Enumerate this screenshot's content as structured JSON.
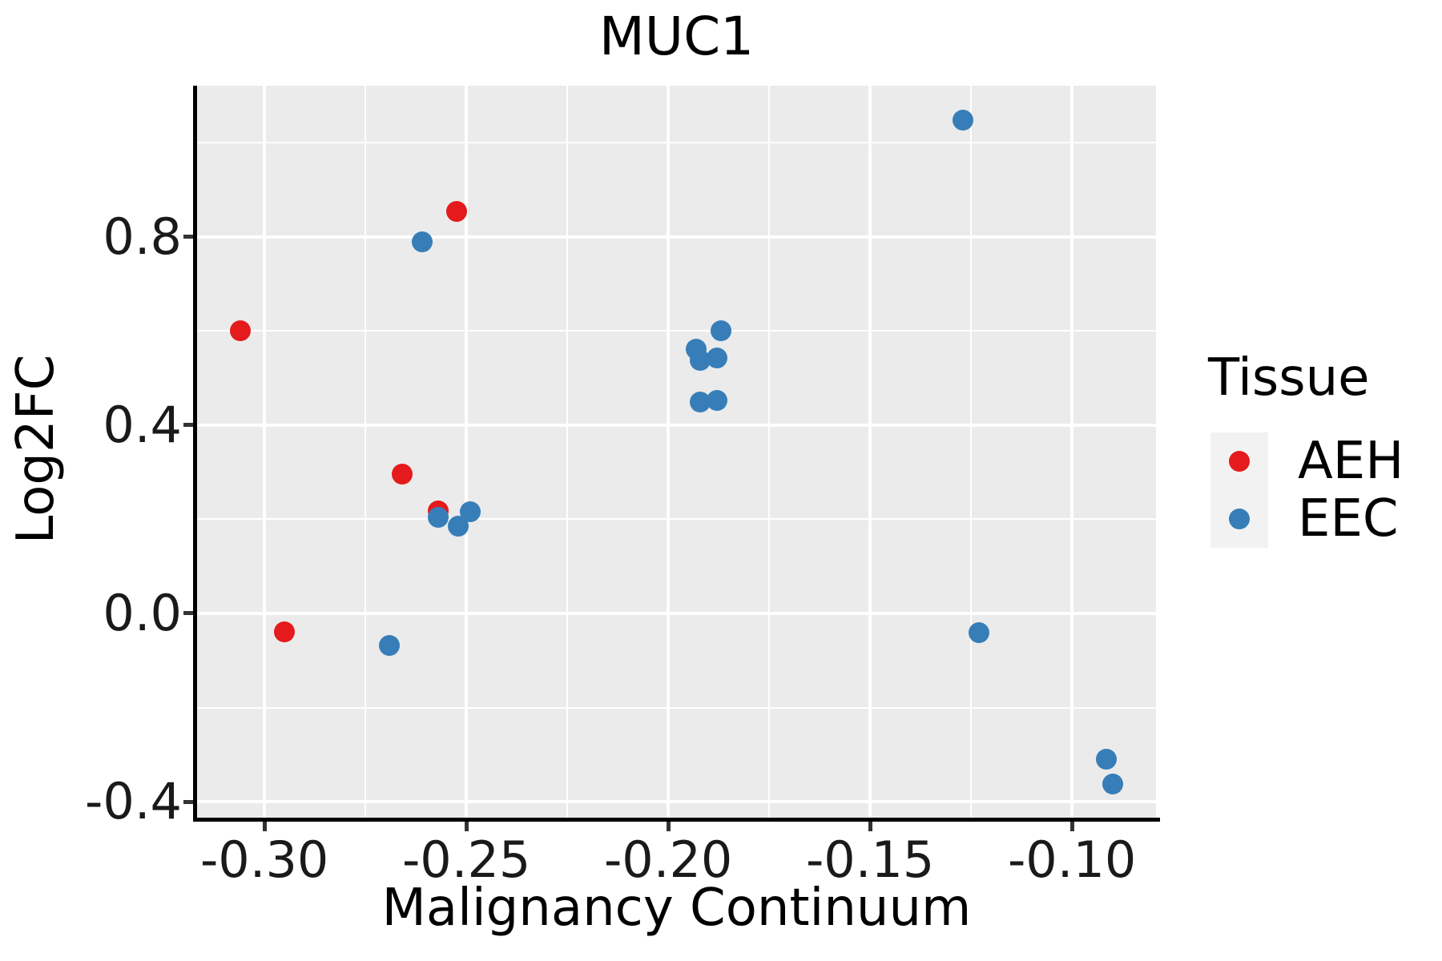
{
  "title": "MUC1",
  "colors": {
    "aeh": "#E41A1C",
    "eec": "#377EB8",
    "panel_background": "#EBEBEB",
    "gridline": "#FFFFFF",
    "axis_line": "#000000",
    "tick": "#333333",
    "tick_label": "#1A1A1A",
    "legend_key_background": "#F2F2F2"
  },
  "legend": {
    "title": "Tissue",
    "items": [
      {
        "label": "AEH",
        "color": "#E41A1C"
      },
      {
        "label": "EEC",
        "color": "#377EB8"
      }
    ]
  },
  "chart_data": {
    "type": "scatter",
    "title": "MUC1",
    "xlabel": "Malignancy Continuum",
    "ylabel": "Log2FC",
    "xlim": [
      -0.3167,
      -0.0792
    ],
    "ylim": [
      -0.434,
      1.1215
    ],
    "x_major_ticks": [
      -0.3,
      -0.25,
      -0.2,
      -0.15,
      -0.1
    ],
    "x_tick_labels": [
      "-0.30",
      "-0.25",
      "-0.20",
      "-0.15",
      "-0.10"
    ],
    "x_minor_gridlines": [
      -0.275,
      -0.225,
      -0.175,
      -0.125
    ],
    "y_major_ticks": [
      -0.4,
      0.0,
      0.4,
      0.8
    ],
    "y_tick_labels": [
      "-0.4",
      "0.0",
      "0.4",
      "0.8"
    ],
    "y_minor_gridlines": [
      -0.2,
      0.2,
      0.6,
      1.0
    ],
    "grid": true,
    "legend_position": "right",
    "series": [
      {
        "name": "AEH",
        "color": "#E41A1C",
        "points": [
          [
            -0.306,
            0.6
          ],
          [
            -0.295,
            -0.039
          ],
          [
            -0.266,
            0.296
          ],
          [
            -0.257,
            0.218
          ],
          [
            -0.2525,
            0.855
          ]
        ]
      },
      {
        "name": "EEC",
        "color": "#377EB8",
        "points": [
          [
            -0.269,
            -0.068
          ],
          [
            -0.261,
            0.79
          ],
          [
            -0.257,
            0.204
          ],
          [
            -0.252,
            0.186
          ],
          [
            -0.249,
            0.216
          ],
          [
            -0.193,
            0.561
          ],
          [
            -0.192,
            0.537
          ],
          [
            -0.192,
            0.45
          ],
          [
            -0.188,
            0.543
          ],
          [
            -0.188,
            0.452
          ],
          [
            -0.187,
            0.6
          ],
          [
            -0.127,
            1.049
          ],
          [
            -0.123,
            -0.041
          ],
          [
            -0.0915,
            -0.31
          ],
          [
            -0.09,
            -0.363
          ]
        ]
      }
    ]
  }
}
